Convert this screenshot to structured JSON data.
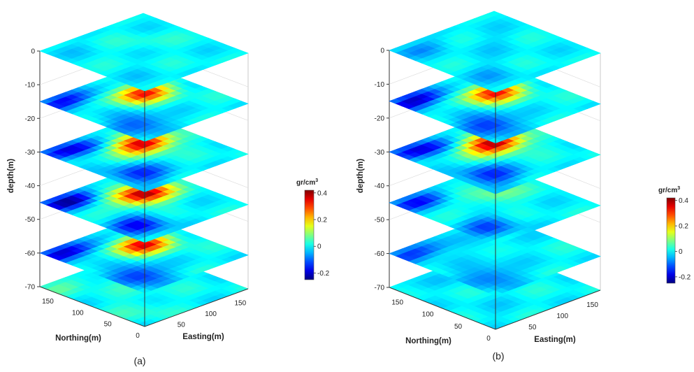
{
  "chart_data": [
    {
      "type": "heatmap",
      "panel_label": "(a)",
      "depth_axis": {
        "label": "depth(m)",
        "ticks": [
          0,
          -10,
          -20,
          -30,
          -40,
          -50,
          -60,
          -70
        ],
        "range": [
          -70,
          0
        ]
      },
      "northing_axis": {
        "label": "Northing(m)",
        "ticks": [
          0,
          50,
          100,
          150
        ],
        "range": [
          0,
          175
        ]
      },
      "easting_axis": {
        "label": "Easting(m)",
        "ticks": [
          50,
          100,
          150
        ],
        "range": [
          0,
          175
        ]
      },
      "slices": [
        {
          "depth": 0,
          "peak": 0.02,
          "min": -0.02
        },
        {
          "depth": -15,
          "peak": 0.32,
          "min": -0.18
        },
        {
          "depth": -30,
          "peak": 0.38,
          "min": -0.2
        },
        {
          "depth": -45,
          "peak": 0.4,
          "min": -0.22
        },
        {
          "depth": -60,
          "peak": 0.34,
          "min": -0.22
        },
        {
          "depth": -70,
          "peak": 0.05,
          "min": 0.05
        }
      ],
      "colorbar": {
        "unit_base": "gr/cm",
        "unit_exp": "3",
        "ticks": [
          "0.4",
          "0.2",
          "0",
          "-0.2"
        ],
        "range": [
          -0.25,
          0.42
        ],
        "colormap": "jet"
      }
    },
    {
      "type": "heatmap",
      "panel_label": "(b)",
      "depth_axis": {
        "label": "depth(m)",
        "ticks": [
          0,
          -10,
          -20,
          -30,
          -40,
          -50,
          -60,
          -70
        ],
        "range": [
          -70,
          0
        ]
      },
      "northing_axis": {
        "label": "Northing(m)",
        "ticks": [
          0,
          50,
          100,
          150
        ],
        "range": [
          0,
          175
        ]
      },
      "easting_axis": {
        "label": "Easting(m)",
        "ticks": [
          50,
          100,
          150
        ],
        "range": [
          0,
          175
        ]
      },
      "slices": [
        {
          "depth": 0,
          "peak": -0.02,
          "min": -0.06
        },
        {
          "depth": -15,
          "peak": 0.32,
          "min": -0.22
        },
        {
          "depth": -30,
          "peak": 0.4,
          "min": -0.2
        },
        {
          "depth": -45,
          "peak": 0.08,
          "min": -0.15
        },
        {
          "depth": -60,
          "peak": -0.02,
          "min": -0.15
        },
        {
          "depth": -70,
          "peak": -0.02,
          "min": -0.02
        }
      ],
      "colorbar": {
        "unit_base": "gr/cm",
        "unit_exp": "3",
        "ticks": [
          "0.4",
          "0.2",
          "0",
          "-0.2"
        ],
        "range": [
          -0.25,
          0.42
        ],
        "colormap": "jet"
      }
    }
  ]
}
